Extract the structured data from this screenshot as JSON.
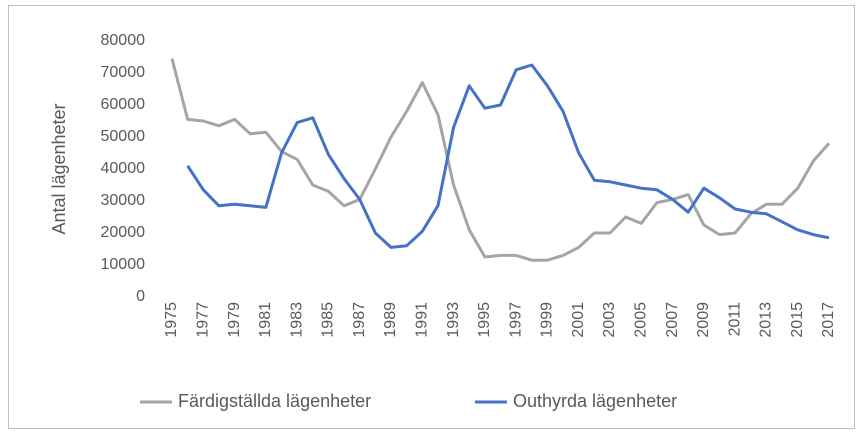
{
  "chart_data": {
    "type": "line",
    "y_label": "Antal lägenheter",
    "categories": [
      "1975",
      null,
      "1977",
      null,
      "1979",
      null,
      "1981",
      null,
      "1983",
      null,
      "1985",
      null,
      "1987",
      null,
      "1989",
      null,
      "1991",
      null,
      "1993",
      null,
      "1995",
      null,
      "1997",
      null,
      "1999",
      null,
      "2001",
      null,
      "2003",
      null,
      "2005",
      null,
      "2007",
      null,
      "2009",
      null,
      "2011",
      null,
      "2013",
      null,
      "2015",
      null,
      "2017"
    ],
    "series": [
      {
        "name": "Färdigställda lägenheter",
        "color": "#a5a5a5",
        "values": [
          74500,
          55500,
          55000,
          53500,
          55500,
          51000,
          51500,
          45500,
          43000,
          35000,
          33000,
          28500,
          30500,
          40000,
          50000,
          58000,
          67000,
          57000,
          35000,
          21000,
          12500,
          13000,
          13000,
          11500,
          11500,
          13000,
          15500,
          20000,
          20000,
          25000,
          23000,
          29500,
          30500,
          32000,
          22500,
          19500,
          20000,
          26000,
          29000,
          29000,
          34000,
          42500,
          48000
        ]
      },
      {
        "name": "Outhyrda lägenheter",
        "color": "#4472c4",
        "values": [
          null,
          41000,
          33500,
          28500,
          29000,
          28500,
          28000,
          45000,
          54500,
          56000,
          44500,
          37000,
          30500,
          20000,
          15500,
          16000,
          20500,
          28500,
          53000,
          66000,
          59000,
          60000,
          71000,
          72500,
          66000,
          58000,
          45000,
          36500,
          36000,
          35000,
          34000,
          33500,
          30500,
          26500,
          34000,
          31000,
          27500,
          26500,
          26000,
          23500,
          21000,
          19500,
          18500
        ]
      }
    ],
    "ylim": [
      0,
      80000
    ],
    "yticks": [
      0,
      10000,
      20000,
      30000,
      40000,
      50000,
      60000,
      70000,
      80000
    ],
    "grid": false,
    "legend": "bottom"
  }
}
